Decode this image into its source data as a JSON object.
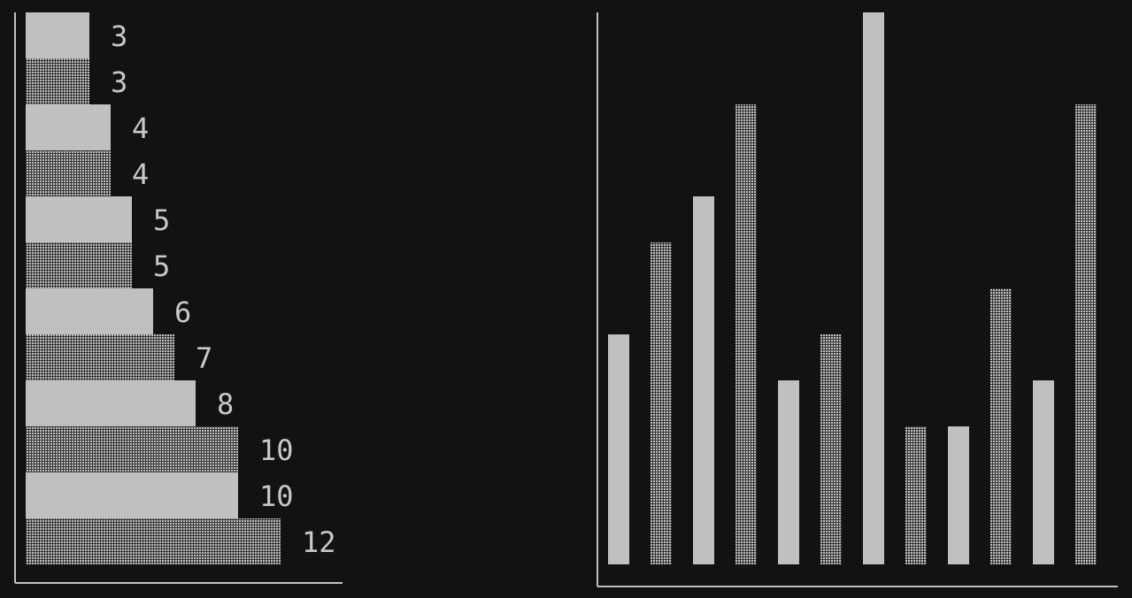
{
  "colors": {
    "background": "#121212",
    "bar_fill": "#c0c0c0",
    "bar_dotted_fg": "#c0c0c0",
    "bar_dotted_bg": "#333333",
    "axis": "#c0c0c0",
    "label": "#c8c8c8"
  },
  "chart_data": [
    {
      "type": "bar",
      "orientation": "horizontal",
      "title": "",
      "xlabel": "",
      "ylabel": "",
      "xlim": [
        0,
        12
      ],
      "grid": false,
      "legend": "none",
      "bars": [
        {
          "value": 3,
          "label": "3",
          "pattern": "solid"
        },
        {
          "value": 3,
          "label": "3",
          "pattern": "dotted"
        },
        {
          "value": 4,
          "label": "4",
          "pattern": "solid"
        },
        {
          "value": 4,
          "label": "4",
          "pattern": "dotted"
        },
        {
          "value": 5,
          "label": "5",
          "pattern": "solid"
        },
        {
          "value": 5,
          "label": "5",
          "pattern": "dotted"
        },
        {
          "value": 6,
          "label": "6",
          "pattern": "solid"
        },
        {
          "value": 7,
          "label": "7",
          "pattern": "dotted"
        },
        {
          "value": 8,
          "label": "8",
          "pattern": "solid"
        },
        {
          "value": 10,
          "label": "10",
          "pattern": "dotted"
        },
        {
          "value": 10,
          "label": "10",
          "pattern": "solid"
        },
        {
          "value": 12,
          "label": "12",
          "pattern": "dotted"
        }
      ]
    },
    {
      "type": "bar",
      "orientation": "vertical",
      "title": "",
      "xlabel": "",
      "ylabel": "",
      "ylim": [
        0,
        12
      ],
      "grid": false,
      "legend": "none",
      "bars": [
        {
          "value": 5,
          "pattern": "solid"
        },
        {
          "value": 7,
          "pattern": "dotted"
        },
        {
          "value": 8,
          "pattern": "solid"
        },
        {
          "value": 10,
          "pattern": "dotted"
        },
        {
          "value": 4,
          "pattern": "solid"
        },
        {
          "value": 5,
          "pattern": "dotted"
        },
        {
          "value": 12,
          "pattern": "solid"
        },
        {
          "value": 3,
          "pattern": "dotted"
        },
        {
          "value": 3,
          "pattern": "solid"
        },
        {
          "value": 6,
          "pattern": "dotted"
        },
        {
          "value": 4,
          "pattern": "solid"
        },
        {
          "value": 10,
          "pattern": "dotted"
        }
      ]
    }
  ]
}
